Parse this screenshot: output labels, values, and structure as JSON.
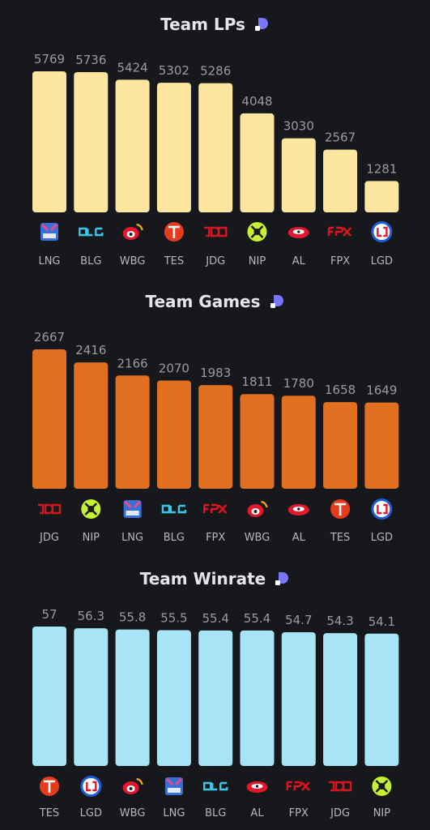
{
  "colors": {
    "background": "#17181c",
    "lp_bars": "#fde6a0",
    "games_bars": "#e07020",
    "winrate_bars": "#a6e4f6",
    "brand_icon": "#7b76ff"
  },
  "chart_data": [
    {
      "type": "bar",
      "title": "Team LPs",
      "categories": [
        "LNG",
        "BLG",
        "WBG",
        "TES",
        "JDG",
        "NIP",
        "AL",
        "FPX",
        "LGD"
      ],
      "values": [
        5769,
        5736,
        5424,
        5302,
        5286,
        4048,
        3030,
        2567,
        1281
      ],
      "value_labels": [
        "5769",
        "5736",
        "5424",
        "5302",
        "5286",
        "4048",
        "3030",
        "2567",
        "1281"
      ],
      "ylim": [
        0,
        5769
      ],
      "color": "#fde6a0",
      "logo_icons": [
        "lng-logo-icon",
        "blg-logo-icon",
        "wbg-logo-icon",
        "tes-logo-icon",
        "jdg-logo-icon",
        "nip-logo-icon",
        "al-logo-icon",
        "fpx-logo-icon",
        "lgd-logo-icon"
      ]
    },
    {
      "type": "bar",
      "title": "Team Games",
      "categories": [
        "JDG",
        "NIP",
        "LNG",
        "BLG",
        "FPX",
        "WBG",
        "AL",
        "TES",
        "LGD"
      ],
      "values": [
        2667,
        2416,
        2166,
        2070,
        1983,
        1811,
        1780,
        1658,
        1649
      ],
      "value_labels": [
        "2667",
        "2416",
        "2166",
        "2070",
        "1983",
        "1811",
        "1780",
        "1658",
        "1649"
      ],
      "ylim": [
        0,
        2667
      ],
      "color": "#e07020",
      "logo_icons": [
        "jdg-logo-icon",
        "nip-logo-icon",
        "lng-logo-icon",
        "blg-logo-icon",
        "fpx-logo-icon",
        "wbg-logo-icon",
        "al-logo-icon",
        "tes-logo-icon",
        "lgd-logo-icon"
      ]
    },
    {
      "type": "bar",
      "title": "Team Winrate",
      "categories": [
        "TES",
        "LGD",
        "WBG",
        "LNG",
        "BLG",
        "AL",
        "FPX",
        "JDG",
        "NIP"
      ],
      "values": [
        57,
        56.3,
        55.8,
        55.5,
        55.4,
        55.4,
        54.7,
        54.3,
        54.1
      ],
      "value_labels": [
        "57",
        "56.3",
        "55.8",
        "55.5",
        "55.4",
        "55.4",
        "54.7",
        "54.3",
        "54.1"
      ],
      "ylim": [
        0,
        57
      ],
      "color": "#a6e4f6",
      "logo_icons": [
        "tes-logo-icon",
        "lgd-logo-icon",
        "wbg-logo-icon",
        "lng-logo-icon",
        "blg-logo-icon",
        "al-logo-icon",
        "fpx-logo-icon",
        "jdg-logo-icon",
        "nip-logo-icon"
      ]
    }
  ]
}
